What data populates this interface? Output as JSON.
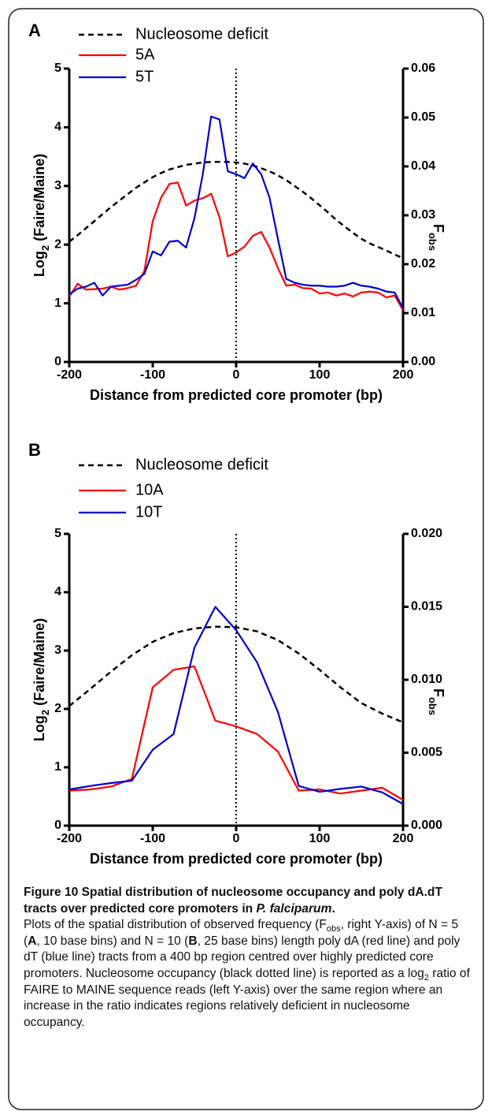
{
  "chart_data": [
    {
      "type": "line",
      "panel": "A",
      "xlabel": "Distance from predicted core promoter (bp)",
      "ylabel": [
        "Log",
        "2",
        " (Faire/Maine)"
      ],
      "y2label": [
        "F",
        "obs"
      ],
      "x": [
        -200,
        -190,
        -180,
        -170,
        -160,
        -150,
        -140,
        -130,
        -120,
        -110,
        -100,
        -90,
        -80,
        -70,
        -60,
        -50,
        -40,
        -30,
        -20,
        -10,
        0,
        10,
        20,
        30,
        40,
        50,
        60,
        70,
        80,
        90,
        100,
        110,
        120,
        130,
        140,
        150,
        160,
        170,
        180,
        190,
        200
      ],
      "xlim": [
        -200,
        200
      ],
      "xticks": [
        -200,
        -100,
        0,
        100,
        200
      ],
      "ylim": [
        0,
        5
      ],
      "yticks": [
        0,
        1,
        2,
        3,
        4,
        5
      ],
      "y2lim": [
        0,
        0.06
      ],
      "y2ticks": [
        {
          "value": 0,
          "label": "0.00"
        },
        0.01,
        0.02,
        0.03,
        0.04,
        0.05,
        0.06
      ],
      "vline": 0,
      "series": [
        {
          "name": "Nucleosome deficit",
          "color": "#000000",
          "dashed": true,
          "values": [
            2.05,
            2.16,
            2.28,
            2.4,
            2.52,
            2.64,
            2.75,
            2.86,
            2.97,
            3.06,
            3.15,
            3.22,
            3.28,
            3.32,
            3.36,
            3.38,
            3.4,
            3.41,
            3.41,
            3.41,
            3.4,
            3.38,
            3.35,
            3.3,
            3.25,
            3.18,
            3.1,
            3.0,
            2.9,
            2.79,
            2.67,
            2.55,
            2.42,
            2.31,
            2.2,
            2.1,
            2.02,
            1.96,
            1.9,
            1.83,
            1.77
          ]
        },
        {
          "name": "5A",
          "color": "#ff0000",
          "axis": "y2",
          "values": [
            0.0134,
            0.016,
            0.0148,
            0.0149,
            0.015,
            0.0154,
            0.0148,
            0.0151,
            0.0156,
            0.0186,
            0.0288,
            0.0336,
            0.0364,
            0.0367,
            0.032,
            0.033,
            0.0335,
            0.0344,
            0.0296,
            0.0216,
            0.0224,
            0.0236,
            0.0258,
            0.0266,
            0.0234,
            0.0192,
            0.0156,
            0.0158,
            0.0151,
            0.015,
            0.014,
            0.0142,
            0.0136,
            0.014,
            0.0134,
            0.0142,
            0.0144,
            0.0142,
            0.0132,
            0.0136,
            0.0106
          ]
        },
        {
          "name": "5T",
          "color": "#0000cc",
          "axis": "y2",
          "values": [
            0.0138,
            0.015,
            0.0154,
            0.0162,
            0.0136,
            0.0154,
            0.0156,
            0.0158,
            0.0168,
            0.018,
            0.0226,
            0.0218,
            0.0246,
            0.0248,
            0.0234,
            0.0294,
            0.0384,
            0.0502,
            0.0496,
            0.039,
            0.0384,
            0.0376,
            0.0406,
            0.0384,
            0.0336,
            0.0252,
            0.017,
            0.0162,
            0.0158,
            0.0156,
            0.0156,
            0.0154,
            0.0154,
            0.0156,
            0.0162,
            0.0156,
            0.0154,
            0.015,
            0.0144,
            0.0142,
            0.011
          ]
        }
      ]
    },
    {
      "type": "line",
      "panel": "B",
      "xlabel": "Distance from predicted core promoter (bp)",
      "ylabel": [
        "Log",
        "2",
        " (Faire/Maine)"
      ],
      "y2label": [
        "F",
        "obs"
      ],
      "x": [
        -200,
        -175,
        -150,
        -125,
        -100,
        -75,
        -50,
        -25,
        0,
        25,
        50,
        75,
        100,
        125,
        150,
        175,
        200
      ],
      "xlim": [
        -200,
        200
      ],
      "xticks": [
        -200,
        -100,
        0,
        100,
        200
      ],
      "ylim": [
        0,
        5
      ],
      "yticks": [
        0,
        1,
        2,
        3,
        4,
        5
      ],
      "y2lim": [
        0,
        0.02
      ],
      "y2ticks": [
        {
          "value": 0,
          "label": "0.000"
        },
        0.005,
        {
          "value": 0.01,
          "label": "0.010"
        },
        0.015,
        {
          "value": 0.02,
          "label": "0.020"
        }
      ],
      "vline": 0,
      "series": [
        {
          "name": "Nucleosome deficit",
          "color": "#000000",
          "dashed": true,
          "values": [
            2.05,
            2.34,
            2.64,
            2.92,
            3.15,
            3.3,
            3.38,
            3.41,
            3.4,
            3.33,
            3.18,
            2.95,
            2.67,
            2.37,
            2.1,
            1.92,
            1.77
          ]
        },
        {
          "name": "10A",
          "color": "#ff0000",
          "axis": "y2",
          "values": [
            0.0024,
            0.00248,
            0.00268,
            0.0032,
            0.00948,
            0.01068,
            0.01092,
            0.0072,
            0.0068,
            0.00628,
            0.00508,
            0.0024,
            0.00248,
            0.0022,
            0.0024,
            0.0026,
            0.00176
          ]
        },
        {
          "name": "10T",
          "color": "#0000cc",
          "axis": "y2",
          "values": [
            0.00248,
            0.00272,
            0.00292,
            0.00308,
            0.0052,
            0.00628,
            0.0122,
            0.015,
            0.0134,
            0.0112,
            0.0078,
            0.00272,
            0.00232,
            0.00252,
            0.00268,
            0.00228,
            0.00148
          ]
        }
      ]
    }
  ],
  "caption": {
    "title": [
      "Figure 10 Spatial distribution of nucleosome occupancy and poly dA.dT tracts over predicted core promoters in ",
      "P. falciparum",
      "."
    ],
    "body": [
      "Plots of the spatial distribution of observed frequency (F",
      "obs",
      ", right Y-axis) of N = 5 (",
      "A",
      ", 10 base bins) and N = 10 (",
      "B",
      ", 25 base bins) length poly dA (red line) and poly dT (blue line) tracts from a 400 bp region centred over highly predicted core promoters. Nucleosome occupancy (black dotted line) is reported as a log",
      "2",
      " ratio of FAIRE to MAINE sequence reads (left Y-axis) over the same region where an increase in the ratio indicates regions relatively deficient in nucleosome occupancy."
    ]
  }
}
